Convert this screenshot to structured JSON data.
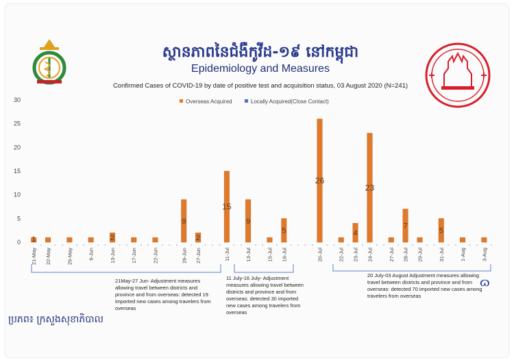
{
  "header": {
    "title_khmer": "ស្ថានភាពនៃជំងឺកូវីដ-១៩ នៅកម្ពុជា",
    "title_english": "Epidemiology and Measures",
    "subtitle": "Confirmed Cases of COVID-19 by date of positive test and acquisition status, 03 August 2020 (N=241)"
  },
  "source": "ប្រភព៖ ក្រសួងសុខាភិបាល",
  "colors": {
    "overseas": "#e07a2a",
    "local": "#4b72c4",
    "axis_text": "#444444",
    "annot_bracket": "#5b7fc4"
  },
  "logos": {
    "left": "ministry-of-health-emblem",
    "right": "ministry-of-health-stamp"
  },
  "annotations": [
    {
      "text": "21May-27 Jun- Adjustment measures allowing travel between districts and province and from overseas: detected 19 imported new cases among travelers from overseas"
    },
    {
      "text": "11 July-16 July- Adjustment measures allowing travel between districts and province and from overseas: detected 30 imported new cases among travelers from overseas"
    },
    {
      "text": "20 July-03 August Adjustment measures allowing travel between districts and province and from overseas: detected 70 imported new cases among travelers from overseas"
    }
  ],
  "chart_data": {
    "type": "bar",
    "title": "Confirmed Cases of COVID-19 by date of positive test and acquisition status, 03 August 2020 (N=241)",
    "ylim": [
      0,
      30
    ],
    "yticks": [
      0,
      5,
      10,
      15,
      20,
      25,
      30
    ],
    "grid": false,
    "legend_position": "top",
    "categories": [
      "21-May",
      "",
      "22-May",
      "",
      "",
      "29-May",
      "",
      "",
      "6-Jun",
      "",
      "",
      "13-Jun",
      "",
      "",
      "17-Jun",
      "",
      "",
      "22-Jun",
      "",
      "",
      "",
      "26-Jun",
      "",
      "27-Jun",
      "",
      "",
      "",
      "11-Jul",
      "",
      "",
      "13-Jul",
      "",
      "",
      "15-Jul",
      "",
      "16-Jul",
      "",
      "",
      "",
      "",
      "20-Jul",
      "",
      "",
      "22-Jul",
      "",
      "23-Jul",
      "",
      "24-Jul",
      "",
      "",
      "27-Jul",
      "",
      "28-Jul",
      "",
      "29-Jul",
      "",
      "",
      "31-Jul",
      "",
      "",
      "1-Aug",
      "",
      "",
      "3-Aug",
      ""
    ],
    "series": [
      {
        "name": "Overseas Acquired",
        "values": [
          1,
          0,
          1,
          0,
          0,
          1,
          0,
          0,
          1,
          0,
          0,
          2,
          0,
          0,
          1,
          0,
          0,
          1,
          0,
          0,
          0,
          9,
          0,
          2,
          0,
          0,
          0,
          15,
          0,
          0,
          9,
          0,
          0,
          1,
          0,
          5,
          0,
          0,
          0,
          0,
          26,
          0,
          0,
          1,
          0,
          4,
          0,
          23,
          0,
          0,
          1,
          0,
          7,
          0,
          1,
          0,
          0,
          5,
          0,
          0,
          1,
          0,
          0,
          1,
          0
        ]
      },
      {
        "name": "Locally Acquired(Close Contact)",
        "values": [
          0,
          0,
          0,
          0,
          0,
          0,
          0,
          0,
          0,
          0,
          0,
          0,
          0,
          0,
          0,
          0,
          0,
          0,
          0,
          0,
          0,
          0,
          0,
          0,
          0,
          0,
          0,
          0,
          0,
          0,
          0,
          0,
          0,
          0,
          0,
          0,
          0,
          0,
          0,
          0,
          0,
          0,
          0,
          0,
          0,
          0,
          0,
          0,
          0,
          0,
          0,
          0,
          0,
          0,
          0,
          0,
          0,
          0,
          0,
          0,
          0,
          0,
          0,
          0,
          0
        ]
      }
    ],
    "data_labels": [
      {
        "category_index": 0,
        "text": "1"
      },
      {
        "category_index": 11,
        "text": "2"
      },
      {
        "category_index": 21,
        "text": "9"
      },
      {
        "category_index": 23,
        "text": "2"
      },
      {
        "category_index": 27,
        "text": "15"
      },
      {
        "category_index": 30,
        "text": "9"
      },
      {
        "category_index": 35,
        "text": "5"
      },
      {
        "category_index": 40,
        "text": "26"
      },
      {
        "category_index": 45,
        "text": "4"
      },
      {
        "category_index": 47,
        "text": "23"
      },
      {
        "category_index": 52,
        "text": "7"
      },
      {
        "category_index": 57,
        "text": "5"
      }
    ]
  }
}
